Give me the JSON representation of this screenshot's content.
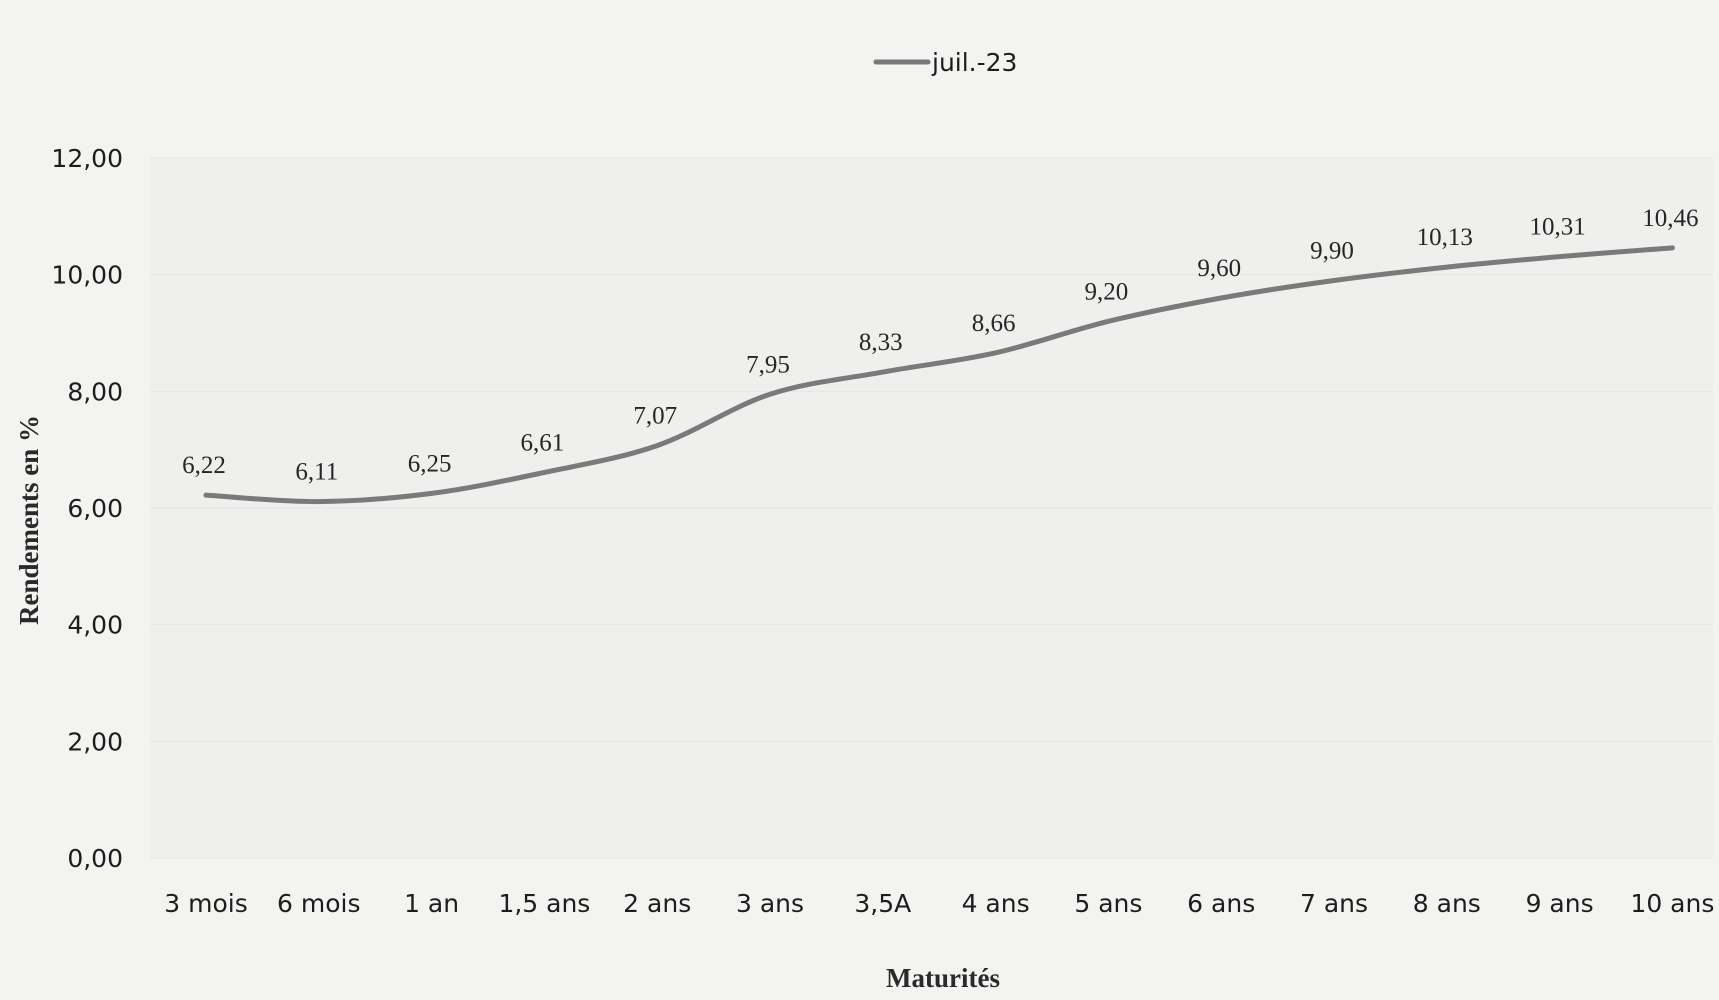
{
  "chart_data": {
    "type": "line",
    "categories": [
      "3 mois",
      "6 mois",
      "1 an",
      "1,5 ans",
      "2 ans",
      "3 ans",
      "3,5A",
      "4 ans",
      "5 ans",
      "6 ans",
      "7 ans",
      "8 ans",
      "9 ans",
      "10 ans"
    ],
    "series": [
      {
        "name": "juil.-23",
        "values": [
          6.22,
          6.11,
          6.25,
          6.61,
          7.07,
          7.95,
          8.33,
          8.66,
          9.2,
          9.6,
          9.9,
          10.13,
          10.31,
          10.46
        ],
        "labels": [
          "6,22",
          "6,11",
          "6,25",
          "6,61",
          "7,07",
          "7,95",
          "8,33",
          "8,66",
          "9,20",
          "9,60",
          "9,90",
          "10,13",
          "10,31",
          "10,46"
        ],
        "color": "#7a7a7a"
      }
    ],
    "xlabel": "Maturités",
    "ylabel": "Rendements en %",
    "ylim": [
      0,
      12
    ],
    "yticks": [
      "0,00",
      "2,00",
      "4,00",
      "6,00",
      "8,00",
      "10,00",
      "12,00"
    ],
    "legend_position": "top-center",
    "grid": true
  }
}
